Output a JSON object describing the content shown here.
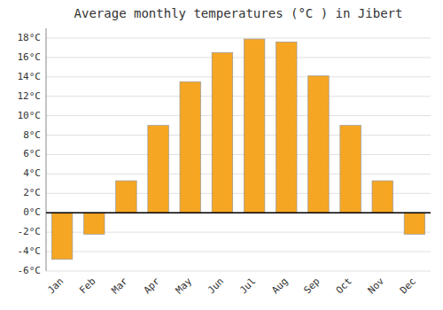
{
  "chart_data": {
    "type": "bar",
    "title": "Average monthly temperatures (°C ) in Jibert",
    "categories": [
      "Jan",
      "Feb",
      "Mar",
      "Apr",
      "May",
      "Jun",
      "Jul",
      "Aug",
      "Sep",
      "Oct",
      "Nov",
      "Dec"
    ],
    "values": [
      -4.8,
      -2.2,
      3.3,
      9.0,
      13.5,
      16.5,
      17.9,
      17.6,
      14.1,
      9.0,
      3.3,
      -2.2
    ],
    "color": "#F5A623",
    "ylim": [
      -6,
      19
    ],
    "yticks": [
      {
        "value": -6,
        "label": "-6°C"
      },
      {
        "value": -4,
        "label": "-4°C"
      },
      {
        "value": -2,
        "label": "-2°C"
      },
      {
        "value": 0,
        "label": "0°C"
      },
      {
        "value": 2,
        "label": "2°C"
      },
      {
        "value": 4,
        "label": "4°C"
      },
      {
        "value": 6,
        "label": "6°C"
      },
      {
        "value": 8,
        "label": "8°C"
      },
      {
        "value": 10,
        "label": "10°C"
      },
      {
        "value": 12,
        "label": "12°C"
      },
      {
        "value": 14,
        "label": "14°C"
      },
      {
        "value": 16,
        "label": "16°C"
      },
      {
        "value": 18,
        "label": "18°C"
      }
    ],
    "grid": true
  }
}
